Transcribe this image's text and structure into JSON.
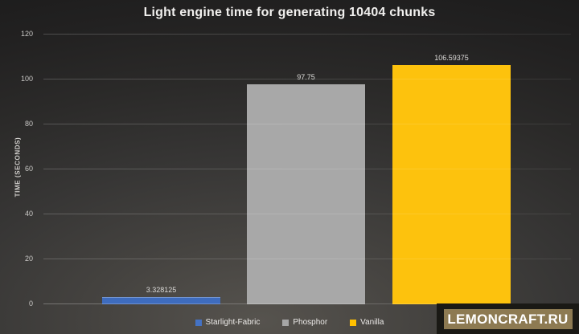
{
  "chart_data": {
    "type": "bar",
    "title": "Light engine time for generating 10404 chunks",
    "xlabel": "",
    "ylabel": "TIME (SECONDS)",
    "categories": [
      "Starlight-Fabric",
      "Phosphor",
      "Vanilla"
    ],
    "values": [
      3.328125,
      97.75,
      106.59375
    ],
    "value_labels": [
      "3.328125",
      "97.75",
      "106.59375"
    ],
    "bar_colors": [
      "#3E6CBE",
      "#A8A8A8",
      "#FDC20D"
    ],
    "ylim": [
      0,
      120
    ],
    "yticks": [
      0,
      20,
      40,
      60,
      80,
      100,
      120
    ],
    "grid": true,
    "legend_position": "bottom",
    "legend": [
      {
        "label": "Starlight-Fabric",
        "color": "#4472C4"
      },
      {
        "label": "Phosphor",
        "color": "#A6A6A6"
      },
      {
        "label": "Vanilla",
        "color": "#FFC000"
      }
    ]
  },
  "watermark": {
    "text": "LEMONCRAFT.RU",
    "background": "#8D7A52"
  }
}
